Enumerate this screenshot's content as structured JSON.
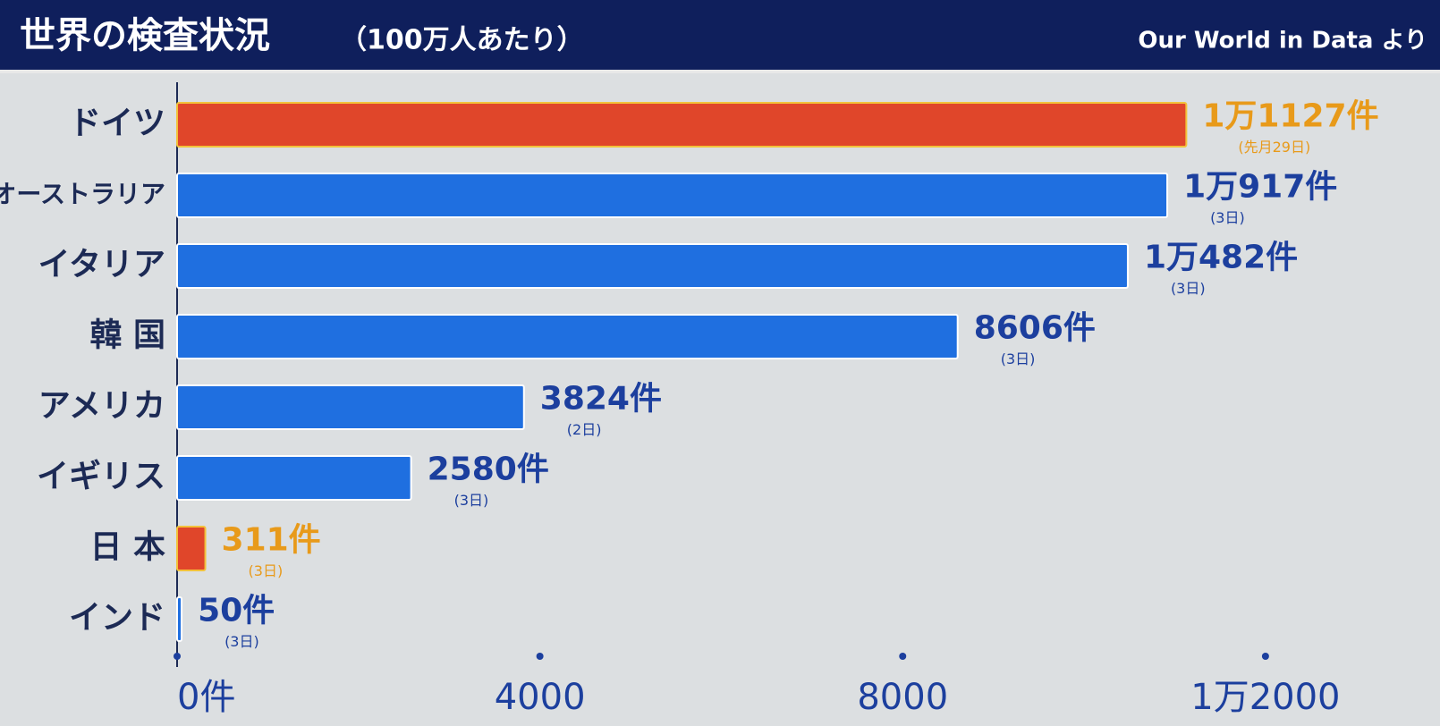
{
  "chart_data": {
    "type": "hbar",
    "title": "世界の検査状況",
    "subtitle": "（100万人あたり）",
    "source": "Our World in Data より",
    "categories": [
      "ドイツ",
      "オーストラリア",
      "イタリア",
      "韓 国",
      "アメリカ",
      "イギリス",
      "日 本",
      "インド"
    ],
    "values": [
      11127,
      10917,
      10482,
      8606,
      3824,
      2580,
      311,
      50
    ],
    "value_labels": [
      "1万1127件",
      "1万917件",
      "1万482件",
      "8606件",
      "3824件",
      "2580件",
      "311件",
      "50件"
    ],
    "notes": [
      "(先月29日)",
      "(3日)",
      "(3日)",
      "(3日)",
      "(2日)",
      "(3日)",
      "(3日)",
      "(3日)"
    ],
    "colors": [
      "#e0462a",
      "#1f6fe0",
      "#1f6fe0",
      "#1f6fe0",
      "#1f6fe0",
      "#1f6fe0",
      "#e0462a",
      "#1f6fe0"
    ],
    "label_colors": [
      "#e89a1a",
      "#1c3f9e",
      "#1c3f9e",
      "#1c3f9e",
      "#1c3f9e",
      "#1c3f9e",
      "#e89a1a",
      "#1c3f9e"
    ],
    "xlim": [
      0,
      13500
    ],
    "xticks": [
      {
        "value": 0,
        "label": "0件"
      },
      4000,
      8000,
      {
        "value": 12000,
        "label": "1万2000"
      }
    ]
  }
}
